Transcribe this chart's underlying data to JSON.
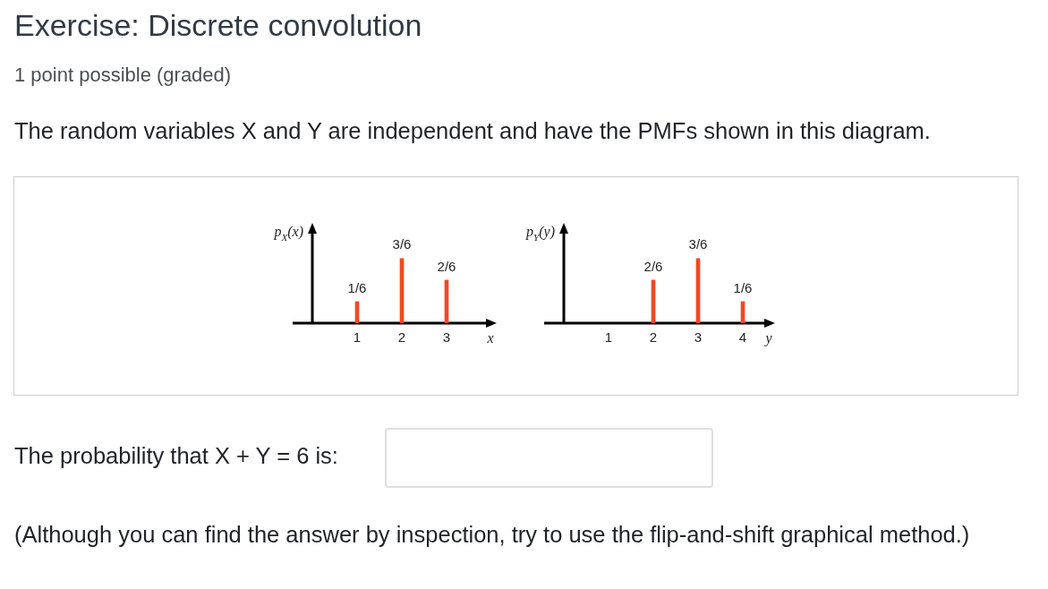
{
  "chart_data": [
    {
      "type": "bar",
      "title": "Exercise: Discrete convolution",
      "annotations": [
        "1 point possible (graded)",
        "The random variables X and Y are independent and have the PMFs shown in this diagram.",
        "The probability that X + Y = 6 is:",
        "(Although you can find the answer by inspection, try to use the flip-and-shift graphical method.)"
      ],
      "x": [
        1,
        2,
        3
      ],
      "values": [
        0.1667,
        0.5,
        0.3333
      ],
      "value_labels": [
        "1/6",
        "3/6",
        "2/6"
      ],
      "color": "#f34822",
      "xlim": [
        0,
        3.9
      ],
      "xticks": [
        1,
        2,
        3
      ],
      "ylim": [
        0,
        0.7
      ],
      "xlabel": "x",
      "ylabel": "p$_{X}$(x)",
      "tick_labels": "x"
    },
    {
      "type": "bar",
      "x": [
        2,
        3,
        4
      ],
      "values": [
        0.3333,
        0.5,
        0.1667
      ],
      "value_labels": [
        "2/6",
        "3/6",
        "1/6"
      ],
      "color": "#f34822",
      "xlim": [
        0,
        4.5
      ],
      "xticks": [
        1,
        2,
        3,
        4
      ],
      "ylim": [
        0,
        0.7
      ],
      "xlabel": "y",
      "ylabel": "p$_{Y}$(y)",
      "tick_labels": "x"
    }
  ]
}
